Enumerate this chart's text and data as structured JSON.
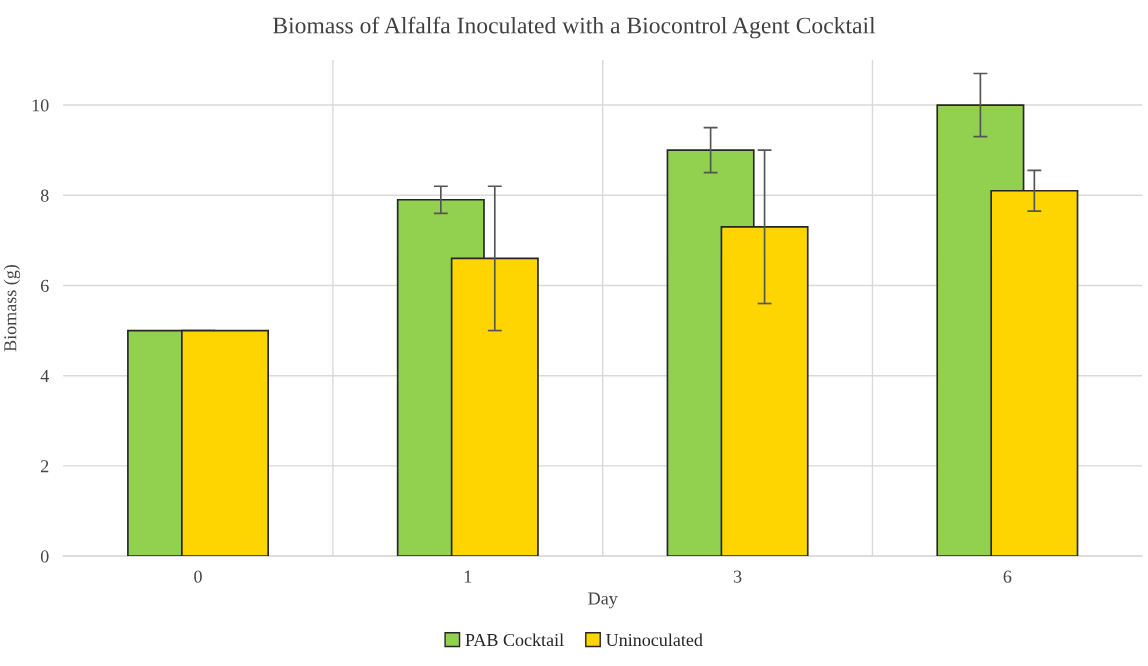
{
  "chart_data": {
    "type": "bar",
    "title": "Biomass of Alfalfa Inoculated with a Biocontrol Agent Cocktail",
    "xlabel": "Day",
    "ylabel": "Biomass (g)",
    "categories": [
      "0",
      "1",
      "3",
      "6"
    ],
    "series": [
      {
        "name": "PAB Cocktail",
        "color": "#92d050",
        "values": [
          5.0,
          7.9,
          9.0,
          10.0
        ],
        "errors": [
          null,
          0.3,
          0.5,
          0.7
        ]
      },
      {
        "name": "Uninoculated",
        "color": "#ffd500",
        "values": [
          5.0,
          6.6,
          7.3,
          8.1
        ],
        "errors": [
          null,
          1.6,
          1.7,
          0.45
        ]
      }
    ],
    "ylim": [
      0,
      11
    ],
    "yticks": [
      0,
      2,
      4,
      6,
      8,
      10
    ],
    "grid": true,
    "legend": "bottom"
  }
}
